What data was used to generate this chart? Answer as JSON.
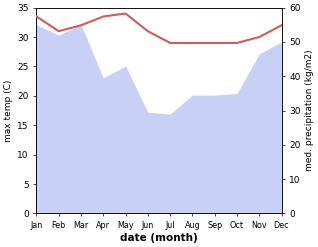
{
  "months": [
    "Jan",
    "Feb",
    "Mar",
    "Apr",
    "May",
    "Jun",
    "Jul",
    "Aug",
    "Sep",
    "Oct",
    "Nov",
    "Dec"
  ],
  "temperature": [
    33.5,
    31.0,
    32.0,
    33.5,
    34.0,
    31.0,
    29.0,
    29.0,
    29.0,
    29.0,
    30.0,
    32.0
  ],
  "precipitation": [
    55.0,
    52.0,
    55.0,
    39.5,
    43.0,
    29.5,
    29.0,
    34.5,
    34.5,
    35.0,
    46.5,
    50.0
  ],
  "temp_color": "#cd5c5c",
  "precip_fill_color": "#c8d0f5",
  "xlabel": "date (month)",
  "ylabel_left": "max temp (C)",
  "ylabel_right": "med. precipitation (kg/m2)",
  "ylim_left": [
    0,
    35
  ],
  "ylim_right": [
    0,
    60
  ],
  "yticks_left": [
    0,
    5,
    10,
    15,
    20,
    25,
    30,
    35
  ],
  "yticks_right": [
    0,
    10,
    20,
    30,
    40,
    50,
    60
  ],
  "bg_color": "#ffffff",
  "temp_linewidth": 1.5
}
